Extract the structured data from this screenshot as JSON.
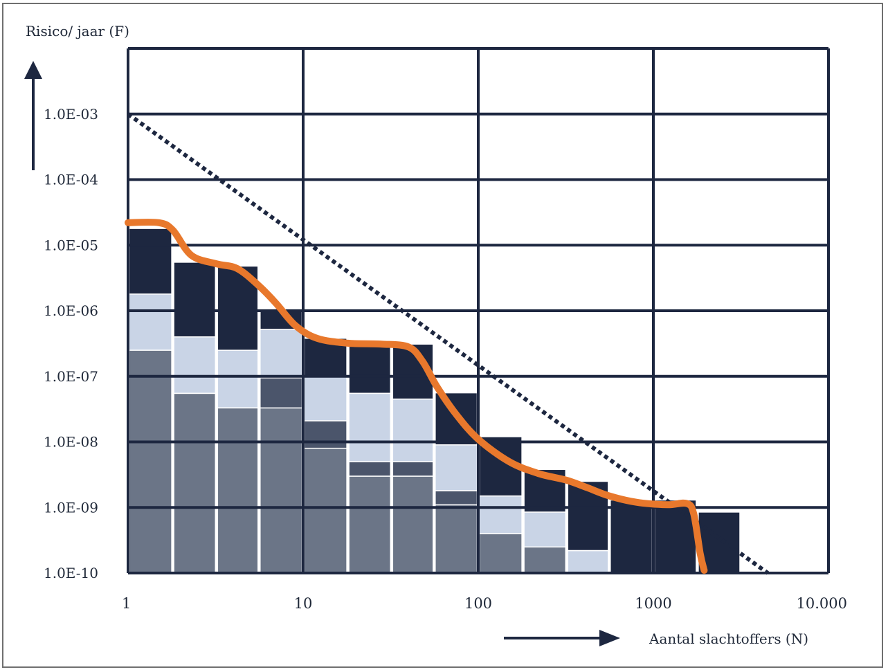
{
  "chart_data": {
    "type": "bar",
    "ylabel": "Risico/ jaar (F)",
    "xlabel": "Aantal slachtoffers (N)",
    "x_scale": "log",
    "y_scale": "log",
    "xlim": [
      1,
      10000
    ],
    "ylim": [
      1e-10,
      0.01
    ],
    "grid": true,
    "x_tick_values": [
      1,
      10,
      100,
      1000,
      10000
    ],
    "x_tick_labels": [
      "1",
      "10",
      "100",
      "1000",
      "10.000"
    ],
    "y_tick_values": [
      0.001,
      0.0001,
      1e-05,
      1e-06,
      1e-07,
      1e-08,
      1e-09,
      1e-10
    ],
    "y_tick_labels": [
      "1.0E-03",
      "1.0E-04",
      "1.0E-05",
      "1.0E-06",
      "1.0E-07",
      "1.0E-08",
      "1.0E-09",
      "1.0E-10"
    ],
    "bins": [
      {
        "x0": 1.0,
        "x1": 1.8,
        "levels": [
          2.5e-07,
          1.8e-06,
          1.8e-05
        ]
      },
      {
        "x0": 1.8,
        "x1": 3.2,
        "levels": [
          5.5e-08,
          4e-07,
          5.5e-06
        ]
      },
      {
        "x0": 3.2,
        "x1": 5.6,
        "levels": [
          3.3e-08,
          2.5e-07,
          4.8e-06
        ]
      },
      {
        "x0": 5.6,
        "x1": 10,
        "levels": [
          3.3e-08,
          9.5e-08,
          5.2e-07,
          1e-06
        ]
      },
      {
        "x0": 10,
        "x1": 18,
        "levels": [
          8e-09,
          2.1e-08,
          1e-07,
          3.8e-07
        ]
      },
      {
        "x0": 18,
        "x1": 32,
        "levels": [
          3e-09,
          5e-09,
          5.5e-08,
          3.3e-07
        ]
      },
      {
        "x0": 32,
        "x1": 56,
        "levels": [
          3e-09,
          5e-09,
          4.5e-08,
          3.1e-07
        ]
      },
      {
        "x0": 56,
        "x1": 100,
        "levels": [
          1.1e-09,
          1.8e-09,
          9e-09,
          5.6e-08
        ]
      },
      {
        "x0": 100,
        "x1": 180,
        "levels": [
          4e-10,
          1.5e-09,
          1.2e-08
        ]
      },
      {
        "x0": 180,
        "x1": 320,
        "levels": [
          2.5e-10,
          8.5e-10,
          3.8e-09
        ]
      },
      {
        "x0": 320,
        "x1": 560,
        "levels": [
          2.2e-10,
          2.5e-09
        ]
      },
      {
        "x0": 560,
        "x1": 1000,
        "levels": [
          1.3e-09
        ]
      },
      {
        "x0": 1000,
        "x1": 1780,
        "levels": [
          1.3e-09
        ]
      },
      {
        "x0": 1780,
        "x1": 3160,
        "levels": [
          8.5e-10
        ]
      }
    ],
    "series": [
      {
        "color": "#6b7587"
      },
      {
        "color": "#4b556b"
      },
      {
        "color": "#c9d4e6"
      },
      {
        "color": "#1d2740"
      }
    ],
    "norm_line": {
      "x": [
        1,
        4500
      ],
      "y": [
        0.001,
        1e-10
      ],
      "style": "dotted",
      "color": "#1d2740"
    },
    "fn_curve": {
      "color": "#e8782c",
      "points": [
        [
          1,
          2.2e-05
        ],
        [
          1.5,
          2.2e-05
        ],
        [
          1.8,
          1.7e-05
        ],
        [
          2.3,
          7e-06
        ],
        [
          3.2,
          5.2e-06
        ],
        [
          4.2,
          4.4e-06
        ],
        [
          5.5,
          2.5e-06
        ],
        [
          7,
          1.3e-06
        ],
        [
          9,
          6e-07
        ],
        [
          12,
          3.8e-07
        ],
        [
          18,
          3.2e-07
        ],
        [
          28,
          3.1e-07
        ],
        [
          40,
          2.8e-07
        ],
        [
          48,
          1.7e-07
        ],
        [
          58,
          7e-08
        ],
        [
          75,
          2.6e-08
        ],
        [
          100,
          1.1e-08
        ],
        [
          150,
          5e-09
        ],
        [
          220,
          3.3e-09
        ],
        [
          320,
          2.6e-09
        ],
        [
          420,
          2e-09
        ],
        [
          560,
          1.5e-09
        ],
        [
          800,
          1.2e-09
        ],
        [
          1200,
          1.1e-09
        ],
        [
          1550,
          1.15e-09
        ],
        [
          1700,
          8e-10
        ],
        [
          1850,
          2e-10
        ],
        [
          1950,
          1.1e-10
        ]
      ]
    }
  }
}
